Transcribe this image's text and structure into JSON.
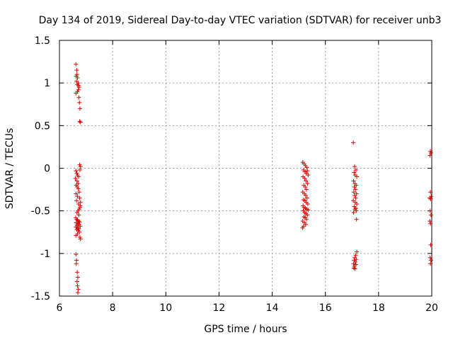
{
  "chart_data": {
    "type": "scatter",
    "title": "Day 134 of 2019, Sidereal Day-to-day VTEC variation (SDTVAR) for receiver unb3",
    "xlabel": "GPS time / hours",
    "ylabel": "SDTVAR / TECUs",
    "xlim": [
      6,
      20
    ],
    "ylim": [
      -1.5,
      1.5
    ],
    "xticks": [
      6,
      8,
      10,
      12,
      14,
      16,
      18,
      20
    ],
    "yticks": [
      -1.5,
      -1,
      -0.5,
      0,
      0.5,
      1,
      1.5
    ],
    "ytick_labels": [
      "-1.5",
      "-1",
      "-0.5",
      "0",
      "0.5",
      "1",
      "1.5"
    ],
    "grid": true,
    "marker": "+",
    "color": "#e00000",
    "series": [
      {
        "name": "SDTVAR",
        "points": [
          [
            6.62,
            1.22
          ],
          [
            6.65,
            1.15
          ],
          [
            6.63,
            1.08
          ],
          [
            6.66,
            1.1
          ],
          [
            6.68,
            1.06
          ],
          [
            6.64,
            1.02
          ],
          [
            6.7,
            1.0
          ],
          [
            6.67,
            0.98
          ],
          [
            6.72,
            0.97
          ],
          [
            6.74,
            0.95
          ],
          [
            6.71,
            0.92
          ],
          [
            6.62,
            0.88
          ],
          [
            6.68,
            0.9
          ],
          [
            6.73,
            0.83
          ],
          [
            6.75,
            0.77
          ],
          [
            6.77,
            0.7
          ],
          [
            6.76,
            0.55
          ],
          [
            6.79,
            0.54
          ],
          [
            6.76,
            0.04
          ],
          [
            6.79,
            0.02
          ],
          [
            6.77,
            -0.02
          ],
          [
            6.62,
            -0.03
          ],
          [
            6.65,
            -0.06
          ],
          [
            6.68,
            -0.08
          ],
          [
            6.72,
            -0.1
          ],
          [
            6.6,
            -0.12
          ],
          [
            6.66,
            -0.15
          ],
          [
            6.7,
            -0.18
          ],
          [
            6.63,
            -0.2
          ],
          [
            6.67,
            -0.22
          ],
          [
            6.71,
            -0.24
          ],
          [
            6.74,
            -0.28
          ],
          [
            6.62,
            -0.3
          ],
          [
            6.68,
            -0.33
          ],
          [
            6.76,
            -0.35
          ],
          [
            6.64,
            -0.38
          ],
          [
            6.79,
            -0.4
          ],
          [
            6.72,
            -0.42
          ],
          [
            6.78,
            -0.44
          ],
          [
            6.77,
            -0.46
          ],
          [
            6.74,
            -0.48
          ],
          [
            6.7,
            -0.5
          ],
          [
            6.66,
            -0.52
          ],
          [
            6.73,
            -0.55
          ],
          [
            6.61,
            -0.58
          ],
          [
            6.65,
            -0.6
          ],
          [
            6.68,
            -0.61
          ],
          [
            6.72,
            -0.62
          ],
          [
            6.76,
            -0.63
          ],
          [
            6.63,
            -0.64
          ],
          [
            6.7,
            -0.65
          ],
          [
            6.74,
            -0.66
          ],
          [
            6.66,
            -0.67
          ],
          [
            6.78,
            -0.68
          ],
          [
            6.62,
            -0.69
          ],
          [
            6.69,
            -0.7
          ],
          [
            6.73,
            -0.71
          ],
          [
            6.65,
            -0.72
          ],
          [
            6.71,
            -0.73
          ],
          [
            6.75,
            -0.75
          ],
          [
            6.68,
            -0.77
          ],
          [
            6.62,
            -0.79
          ],
          [
            6.77,
            -0.81
          ],
          [
            6.79,
            -0.83
          ],
          [
            6.62,
            -1.01
          ],
          [
            6.64,
            -1.08
          ],
          [
            6.63,
            -1.12
          ],
          [
            6.67,
            -1.22
          ],
          [
            6.69,
            -1.28
          ],
          [
            6.66,
            -1.33
          ],
          [
            6.68,
            -1.38
          ],
          [
            6.71,
            -1.42
          ],
          [
            6.69,
            -1.46
          ],
          [
            15.15,
            0.07
          ],
          [
            15.2,
            0.05
          ],
          [
            15.25,
            0.03
          ],
          [
            15.3,
            0.01
          ],
          [
            15.18,
            -0.02
          ],
          [
            15.23,
            -0.04
          ],
          [
            15.28,
            -0.06
          ],
          [
            15.32,
            -0.03
          ],
          [
            15.35,
            -0.08
          ],
          [
            15.16,
            -0.1
          ],
          [
            15.22,
            -0.12
          ],
          [
            15.27,
            -0.15
          ],
          [
            15.33,
            -0.18
          ],
          [
            15.19,
            -0.2
          ],
          [
            15.24,
            -0.22
          ],
          [
            15.29,
            -0.25
          ],
          [
            15.15,
            -0.28
          ],
          [
            15.21,
            -0.3
          ],
          [
            15.26,
            -0.32
          ],
          [
            15.31,
            -0.35
          ],
          [
            15.18,
            -0.37
          ],
          [
            15.23,
            -0.38
          ],
          [
            15.28,
            -0.4
          ],
          [
            15.34,
            -0.42
          ],
          [
            15.16,
            -0.44
          ],
          [
            15.2,
            -0.46
          ],
          [
            15.25,
            -0.47
          ],
          [
            15.3,
            -0.48
          ],
          [
            15.35,
            -0.49
          ],
          [
            15.17,
            -0.5
          ],
          [
            15.22,
            -0.52
          ],
          [
            15.27,
            -0.53
          ],
          [
            15.32,
            -0.55
          ],
          [
            15.19,
            -0.57
          ],
          [
            15.24,
            -0.58
          ],
          [
            15.29,
            -0.6
          ],
          [
            15.15,
            -0.62
          ],
          [
            15.21,
            -0.64
          ],
          [
            15.26,
            -0.66
          ],
          [
            15.18,
            -0.68
          ],
          [
            15.14,
            -0.7
          ],
          [
            17.05,
            0.3
          ],
          [
            17.1,
            0.02
          ],
          [
            17.15,
            -0.02
          ],
          [
            17.08,
            -0.05
          ],
          [
            17.12,
            -0.08
          ],
          [
            17.18,
            -0.1
          ],
          [
            17.06,
            -0.15
          ],
          [
            17.11,
            -0.18
          ],
          [
            17.16,
            -0.2
          ],
          [
            17.09,
            -0.22
          ],
          [
            17.13,
            -0.25
          ],
          [
            17.07,
            -0.28
          ],
          [
            17.17,
            -0.3
          ],
          [
            17.1,
            -0.32
          ],
          [
            17.14,
            -0.35
          ],
          [
            17.05,
            -0.38
          ],
          [
            17.12,
            -0.4
          ],
          [
            17.18,
            -0.42
          ],
          [
            17.08,
            -0.45
          ],
          [
            17.15,
            -0.47
          ],
          [
            17.11,
            -0.48
          ],
          [
            17.16,
            -0.5
          ],
          [
            17.06,
            -0.52
          ],
          [
            17.17,
            -0.6
          ],
          [
            17.18,
            -0.98
          ],
          [
            17.14,
            -1.02
          ],
          [
            17.1,
            -1.05
          ],
          [
            17.16,
            -1.07
          ],
          [
            17.08,
            -1.08
          ],
          [
            17.12,
            -1.1
          ],
          [
            17.06,
            -1.12
          ],
          [
            17.15,
            -1.13
          ],
          [
            17.09,
            -1.15
          ],
          [
            17.07,
            -1.17
          ],
          [
            17.11,
            -1.18
          ],
          [
            19.95,
            0.2
          ],
          [
            19.97,
            0.18
          ],
          [
            19.93,
            0.15
          ],
          [
            19.95,
            -0.28
          ],
          [
            19.98,
            -0.33
          ],
          [
            19.92,
            -0.35
          ],
          [
            19.96,
            -0.36
          ],
          [
            19.94,
            -0.5
          ],
          [
            19.97,
            -0.55
          ],
          [
            19.93,
            -0.62
          ],
          [
            19.95,
            -0.65
          ],
          [
            19.96,
            -0.9
          ],
          [
            19.94,
            -1.05
          ],
          [
            19.97,
            -1.08
          ],
          [
            19.95,
            -1.12
          ]
        ]
      }
    ]
  }
}
